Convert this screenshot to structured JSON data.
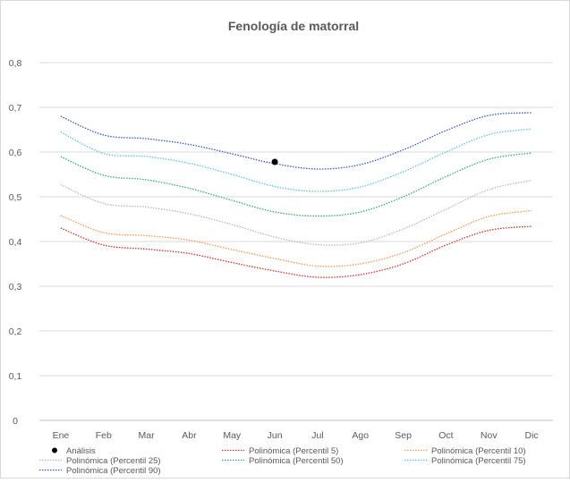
{
  "chart_data": {
    "type": "line",
    "title": "Fenología de matorral",
    "xlabel": "",
    "ylabel": "",
    "categories": [
      "Ene",
      "Feb",
      "Mar",
      "Abr",
      "May",
      "Jun",
      "Jul",
      "Ago",
      "Sep",
      "Oct",
      "Nov",
      "Dic"
    ],
    "ylim": [
      0,
      0.8
    ],
    "yticks": [
      "0",
      "0,1",
      "0,2",
      "0,3",
      "0,4",
      "0,5",
      "0,6",
      "0,7",
      "0,8"
    ],
    "grid": true,
    "legend_position": "bottom",
    "point_series": {
      "name": "Análisis",
      "color": "#000000",
      "x": "Jun",
      "y": 0.578
    },
    "series": [
      {
        "name": "Polinómica (Percentil 5)",
        "color": "#e0302a",
        "values": [
          0.43,
          0.392,
          0.383,
          0.373,
          0.353,
          0.334,
          0.32,
          0.326,
          0.35,
          0.392,
          0.425,
          0.434
        ]
      },
      {
        "name": "Polinómica (Percentil 10)",
        "color": "#f39a4e",
        "values": [
          0.458,
          0.42,
          0.413,
          0.403,
          0.382,
          0.362,
          0.345,
          0.35,
          0.375,
          0.417,
          0.456,
          0.469
        ]
      },
      {
        "name": "Polinómica (Percentil 25)",
        "color": "#b8b8b8",
        "values": [
          0.527,
          0.485,
          0.477,
          0.462,
          0.438,
          0.41,
          0.393,
          0.397,
          0.428,
          0.472,
          0.516,
          0.537
        ]
      },
      {
        "name": "Polinómica (Percentil 50)",
        "color": "#32b06e",
        "values": [
          0.59,
          0.548,
          0.538,
          0.519,
          0.492,
          0.466,
          0.457,
          0.466,
          0.5,
          0.545,
          0.584,
          0.598
        ]
      },
      {
        "name": "Polinómica (Percentil 75)",
        "color": "#5cc7dd",
        "values": [
          0.645,
          0.597,
          0.59,
          0.575,
          0.55,
          0.523,
          0.512,
          0.522,
          0.556,
          0.6,
          0.639,
          0.652
        ]
      },
      {
        "name": "Polinómica (Percentil 90)",
        "color": "#3556c9",
        "values": [
          0.68,
          0.638,
          0.63,
          0.617,
          0.596,
          0.574,
          0.562,
          0.572,
          0.605,
          0.648,
          0.682,
          0.688
        ]
      }
    ]
  }
}
